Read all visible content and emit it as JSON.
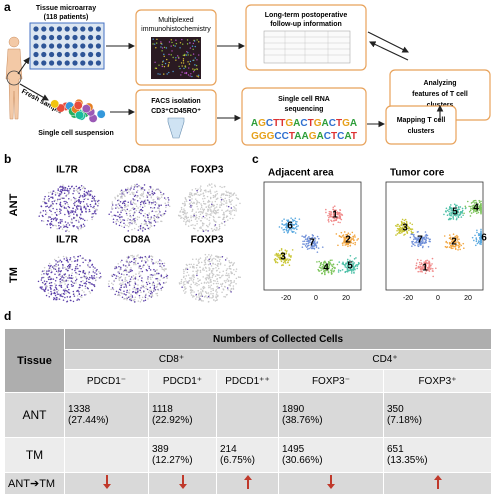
{
  "panel_labels": {
    "a": "a",
    "b": "b",
    "c": "c",
    "d": "d"
  },
  "panel_a": {
    "tissue_microarray": [
      "Tissue microarray",
      "(118 patients)"
    ],
    "fresh_sample": "Fresh sample",
    "single_cell_suspension": "Single cell suspension",
    "multiplexed": [
      "Multiplexed",
      "immunohistochemistry"
    ],
    "follow_up": [
      "Long-term postoperative",
      "follow-up information"
    ],
    "facs": [
      "FACS isolation",
      "CD3⁺CD45RO⁺"
    ],
    "scrna": [
      "Single cell RNA",
      "sequencing"
    ],
    "sequences": [
      "AGCTTGACTGACTGA",
      "GGGCCTAAGACTCAT"
    ],
    "mapping": [
      "Mapping T cell",
      "clusters"
    ],
    "analyzing": [
      "Analyzing",
      "features of T cell",
      "clusters"
    ]
  },
  "panel_b": {
    "genes": [
      "IL7R",
      "CD8A",
      "FOXP3"
    ],
    "rows": [
      "ANT",
      "TM"
    ]
  },
  "panel_c": {
    "plots": [
      {
        "title": "Adjacent area",
        "clusters": [
          "1",
          "2",
          "3",
          "4",
          "5",
          "6",
          "7"
        ]
      },
      {
        "title": "Tumor core",
        "clusters": [
          "1",
          "2",
          "3",
          "4",
          "5",
          "6",
          "7"
        ]
      }
    ],
    "x_tick_labels": [
      "-20",
      "0",
      "20"
    ]
  },
  "table": {
    "row_header": "Tissue",
    "title": "Numbers of Collected Cells",
    "groups": [
      {
        "name": "CD8⁺",
        "span": 3
      },
      {
        "name": "CD4⁺",
        "span": 2
      }
    ],
    "columns": [
      "PDCD1⁻",
      "PDCD1⁺",
      "PDCD1⁺⁺",
      "FOXP3⁻",
      "FOXP3⁺"
    ],
    "rows": [
      {
        "name": "ANT",
        "cells": [
          {
            "count": 1338,
            "pct": "(27.44%)"
          },
          {
            "count": 1118,
            "pct": "(22.92%)"
          },
          null,
          {
            "count": 1890,
            "pct": "(38.76%)"
          },
          {
            "count": 350,
            "pct": "(7.18%)"
          }
        ]
      },
      {
        "name": "TM",
        "cells": [
          null,
          {
            "count": 389,
            "pct": "(12.27%)"
          },
          {
            "count": 214,
            "pct": "(6.75%)"
          },
          {
            "count": 1495,
            "pct": "(30.66%)"
          },
          {
            "count": 651,
            "pct": "(13.35%)"
          }
        ]
      }
    ],
    "change": {
      "name": "ANT➔TM",
      "directions": [
        "down",
        "down",
        "up",
        "down",
        "up"
      ]
    }
  }
}
